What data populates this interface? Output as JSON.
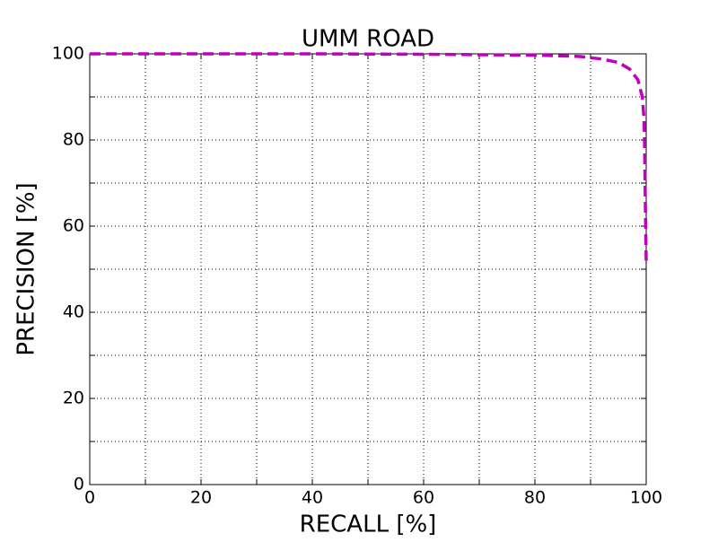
{
  "chart_data": {
    "type": "line",
    "title": "UMM ROAD",
    "x_label": "RECALL [%]",
    "y_label": "PRECISION [%]",
    "x": [
      0,
      20,
      40,
      60,
      80,
      88,
      92,
      95,
      97,
      98.5,
      99.3,
      99.6,
      99.7,
      99.8,
      99.9,
      100
    ],
    "series": [
      {
        "name": "UMM ROAD",
        "color": "#bf00bf",
        "values": [
          100,
          100,
          100,
          99.9,
          99.7,
          99.4,
          98.8,
          98,
          96.5,
          94,
          90,
          85,
          80,
          70,
          60,
          52
        ]
      }
    ],
    "xlim": [
      0,
      100
    ],
    "ylim": [
      0,
      100
    ],
    "xticks": [
      0,
      20,
      40,
      60,
      80,
      100
    ],
    "yticks": [
      0,
      20,
      40,
      60,
      80,
      100
    ],
    "xminorticks": [
      10,
      30,
      50,
      70,
      90
    ],
    "yminorticks": [
      10,
      30,
      50,
      70,
      90
    ],
    "grid": true,
    "line_style": "dashed"
  }
}
